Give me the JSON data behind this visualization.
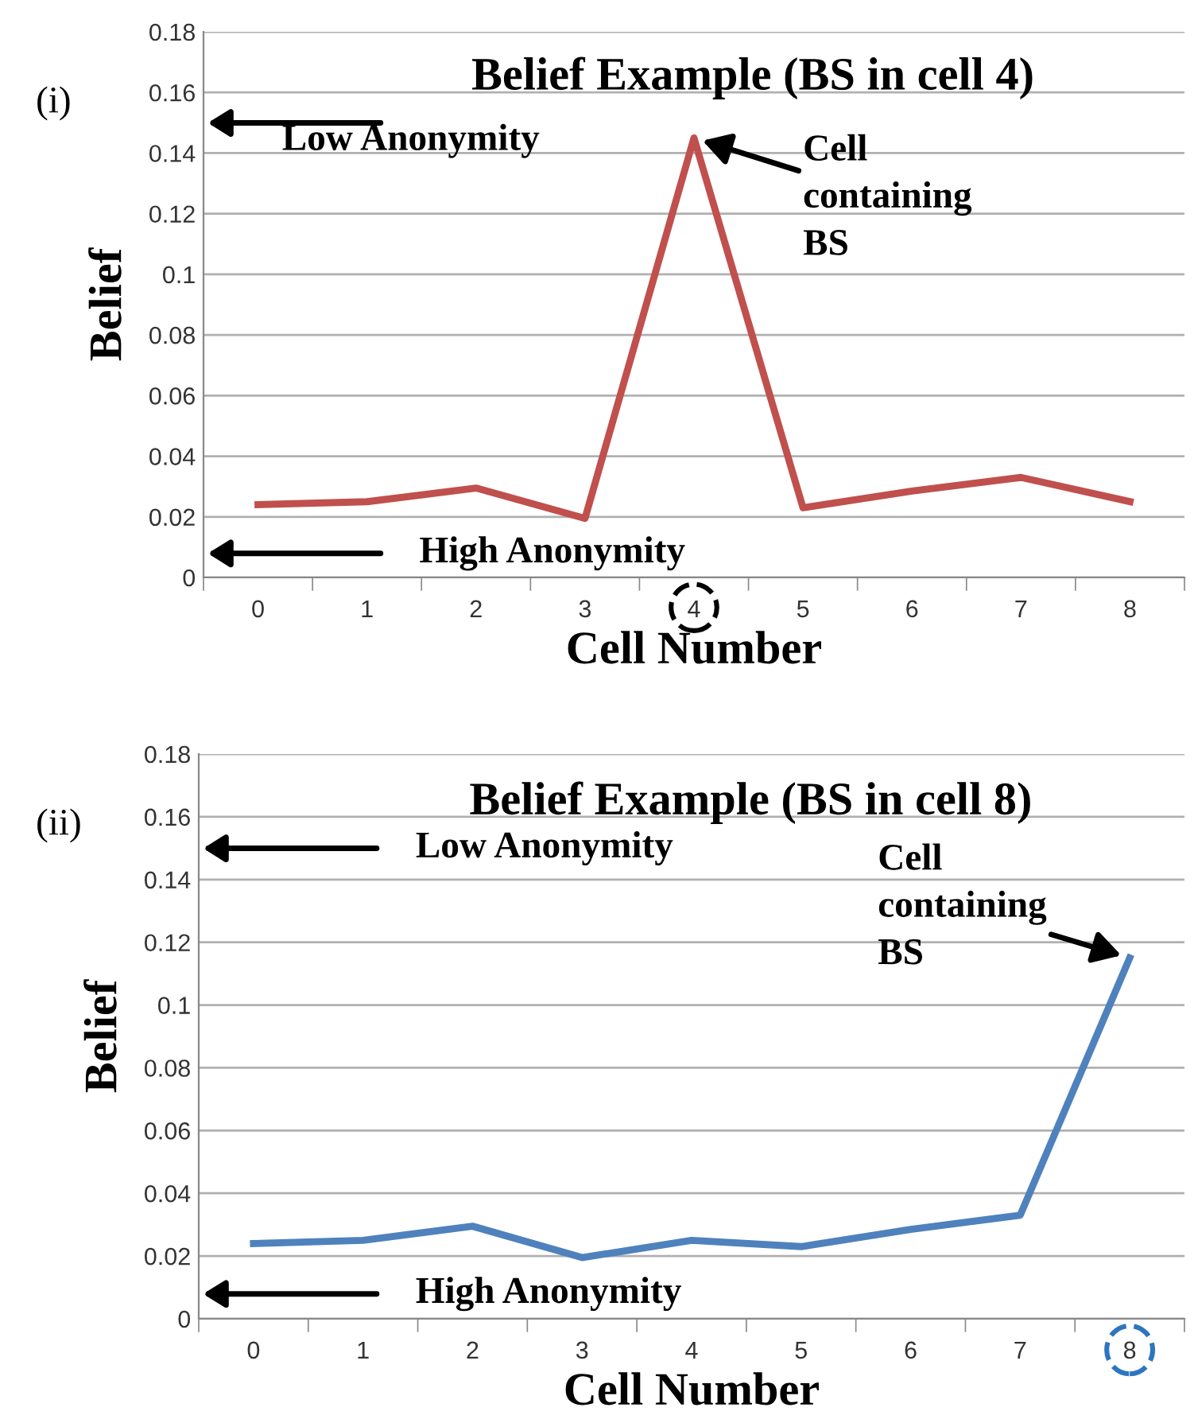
{
  "chart_data": [
    {
      "type": "line",
      "title": "Belief Example (BS in cell 4)",
      "xlabel": "Cell Number",
      "ylabel": "Belief",
      "categories": [
        "0",
        "1",
        "2",
        "3",
        "4",
        "5",
        "6",
        "7",
        "8"
      ],
      "series": [
        {
          "color": "#c0504d",
          "values": [
            0.024,
            0.025,
            0.0295,
            0.0195,
            0.145,
            0.023,
            0.0285,
            0.033,
            0.025
          ]
        }
      ],
      "ylim": [
        0,
        0.18
      ],
      "yticks": [
        0,
        0.02,
        0.04,
        0.06,
        0.08,
        0.1,
        0.12,
        0.14,
        0.16,
        0.18
      ],
      "grid": "y",
      "marker": "none",
      "line_style": "solid",
      "annotations": [
        "(i)",
        "Low Anonymity",
        "High Anonymity",
        {
          "text": "Cell\ncontaining\nBS",
          "x": "4",
          "y": 0.145
        }
      ]
    },
    {
      "type": "line",
      "title": "Belief Example (BS in cell 8)",
      "xlabel": "Cell Number",
      "ylabel": "Belief",
      "categories": [
        "0",
        "1",
        "2",
        "3",
        "4",
        "5",
        "6",
        "7",
        "8"
      ],
      "series": [
        {
          "color": "#4f81bd",
          "values": [
            0.024,
            0.025,
            0.0295,
            0.0195,
            0.025,
            0.023,
            0.0285,
            0.033,
            0.115
          ]
        }
      ],
      "ylim": [
        0,
        0.18
      ],
      "yticks": [
        0,
        0.02,
        0.04,
        0.06,
        0.08,
        0.1,
        0.12,
        0.14,
        0.16,
        0.18
      ],
      "grid": "y",
      "marker": "none",
      "line_style": "solid",
      "annotations": [
        "(ii)",
        "Low Anonymity",
        "High Anonymity",
        {
          "text": "Cell\ncontaining\nBS",
          "x": "8",
          "y": 0.115
        }
      ]
    }
  ]
}
